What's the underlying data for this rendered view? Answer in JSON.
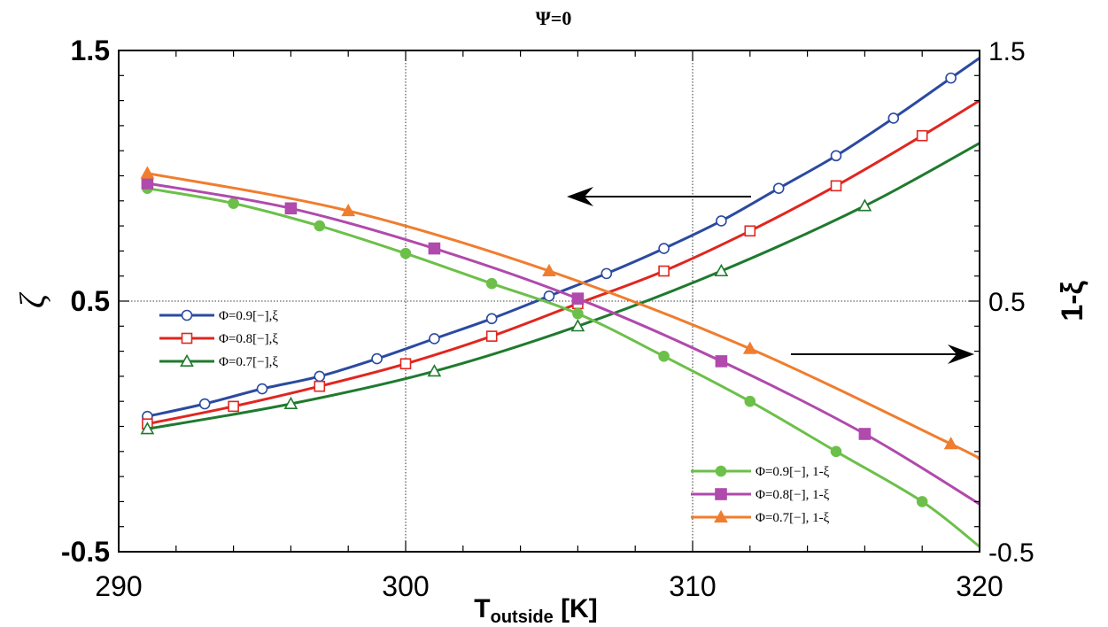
{
  "chart_data": {
    "type": "line",
    "title": "Ψ=0",
    "xlabel": {
      "main": "T",
      "sub": "outside",
      "unit": " [K]"
    },
    "ylabel_left": "ζ",
    "ylabel_right": "1-ξ",
    "xlim": [
      290,
      320
    ],
    "ylim": [
      -0.5,
      1.5
    ],
    "x_ticks": [
      "290",
      "300",
      "310",
      "320"
    ],
    "y_ticks_left": [
      "-0.5",
      "0.5",
      "1.5"
    ],
    "y_ticks_right": [
      "-0.5",
      "0.5",
      "1.5"
    ],
    "grid_x": [
      300,
      310
    ],
    "grid_y": [
      0.5
    ],
    "series": [
      {
        "name": "Φ=0.9[−],ξ",
        "legend": "left",
        "color": "#2b4aa0",
        "marker": "circle",
        "filled": false,
        "points": [
          [
            291,
            0.04
          ],
          [
            293,
            0.09
          ],
          [
            295,
            0.15
          ],
          [
            297,
            0.2
          ],
          [
            299,
            0.27
          ],
          [
            301,
            0.35
          ],
          [
            303,
            0.43
          ],
          [
            305,
            0.52
          ],
          [
            307,
            0.61
          ],
          [
            309,
            0.71
          ],
          [
            311,
            0.82
          ],
          [
            313,
            0.95
          ],
          [
            315,
            1.08
          ],
          [
            317,
            1.23
          ],
          [
            319,
            1.39
          ],
          [
            320,
            1.47
          ]
        ]
      },
      {
        "name": "Φ=0.8[−],ξ",
        "legend": "left",
        "color": "#e0261f",
        "marker": "square",
        "filled": false,
        "points": [
          [
            291,
            0.01
          ],
          [
            294,
            0.08
          ],
          [
            297,
            0.16
          ],
          [
            300,
            0.25
          ],
          [
            303,
            0.36
          ],
          [
            306,
            0.49
          ],
          [
            309,
            0.62
          ],
          [
            312,
            0.78
          ],
          [
            315,
            0.96
          ],
          [
            318,
            1.16
          ],
          [
            320,
            1.3
          ]
        ]
      },
      {
        "name": "Φ=0.7[−],ξ",
        "legend": "left",
        "color": "#1f7a2e",
        "marker": "triangle",
        "filled": false,
        "points": [
          [
            291,
            -0.01
          ],
          [
            296,
            0.09
          ],
          [
            301,
            0.22
          ],
          [
            306,
            0.4
          ],
          [
            311,
            0.62
          ],
          [
            316,
            0.88
          ],
          [
            320,
            1.13
          ]
        ]
      },
      {
        "name": "Φ=0.9[−], 1-ξ",
        "legend": "right",
        "color": "#6cc04a",
        "marker": "circle",
        "filled": true,
        "points": [
          [
            291,
            0.95
          ],
          [
            294,
            0.89
          ],
          [
            297,
            0.8
          ],
          [
            300,
            0.69
          ],
          [
            303,
            0.57
          ],
          [
            306,
            0.45
          ],
          [
            309,
            0.28
          ],
          [
            312,
            0.1
          ],
          [
            315,
            -0.1
          ],
          [
            318,
            -0.3
          ],
          [
            320,
            -0.48
          ]
        ]
      },
      {
        "name": "Φ=0.8[−], 1-ξ",
        "legend": "right",
        "color": "#b04aac",
        "marker": "square",
        "filled": true,
        "points": [
          [
            291,
            0.97
          ],
          [
            296,
            0.87
          ],
          [
            301,
            0.71
          ],
          [
            306,
            0.51
          ],
          [
            311,
            0.26
          ],
          [
            316,
            -0.03
          ],
          [
            320,
            -0.31
          ]
        ]
      },
      {
        "name": "Φ=0.7[−], 1-ξ",
        "legend": "right",
        "color": "#f07d2e",
        "marker": "triangle",
        "filled": true,
        "points": [
          [
            291,
            1.01
          ],
          [
            298,
            0.86
          ],
          [
            305,
            0.62
          ],
          [
            312,
            0.31
          ],
          [
            319,
            -0.07
          ],
          [
            320,
            -0.13
          ]
        ]
      }
    ],
    "annotations": [
      {
        "type": "arrow",
        "direction": "left",
        "meaning": "left axis"
      },
      {
        "type": "arrow",
        "direction": "right",
        "meaning": "right axis"
      }
    ]
  }
}
